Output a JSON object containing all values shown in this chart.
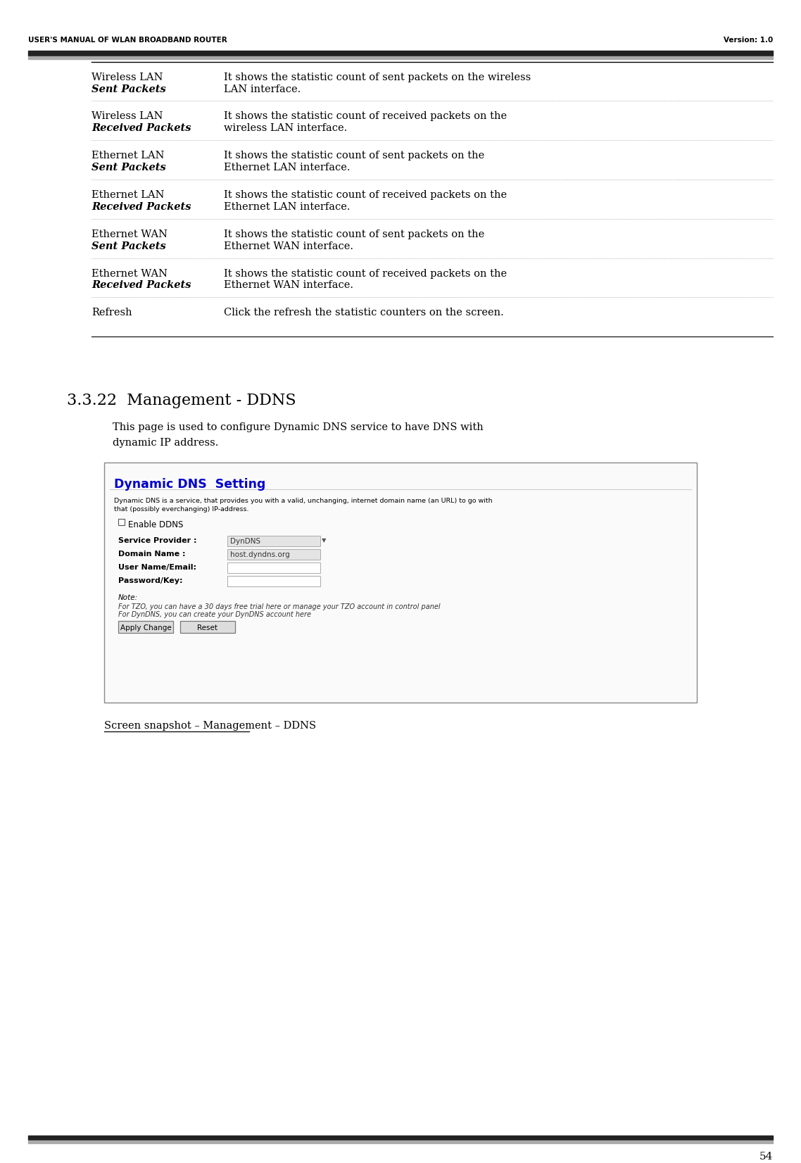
{
  "header_left": "USER'S MANUAL OF WLAN BROADBAND ROUTER",
  "header_right": "Version: 1.0",
  "page_number": "54",
  "table_rows": [
    {
      "col1_line1": "Wireless LAN",
      "col1_line2": "Sent Packets",
      "col1_bold": true,
      "col2_line1": "It shows the statistic count of sent packets on the wireless",
      "col2_line2": "LAN interface."
    },
    {
      "col1_line1": "Wireless LAN",
      "col1_line2": "Received Packets",
      "col1_bold": true,
      "col2_line1": "It shows the statistic count of received packets on the",
      "col2_line2": "wireless LAN interface."
    },
    {
      "col1_line1": "Ethernet LAN",
      "col1_line2": "Sent Packets",
      "col1_bold": true,
      "col2_line1": "It shows the statistic count of sent packets on the",
      "col2_line2": "Ethernet LAN interface."
    },
    {
      "col1_line1": "Ethernet LAN",
      "col1_line2": "Received Packets",
      "col1_bold": true,
      "col2_line1": "It shows the statistic count of received packets on the",
      "col2_line2": "Ethernet LAN interface."
    },
    {
      "col1_line1": "Ethernet WAN",
      "col1_line2": "Sent Packets",
      "col1_bold": true,
      "col2_line1": "It shows the statistic count of sent packets on the",
      "col2_line2": "Ethernet WAN interface."
    },
    {
      "col1_line1": "Ethernet WAN",
      "col1_line2": "Received Packets",
      "col1_bold": true,
      "col2_line1": "It shows the statistic count of received packets on the",
      "col2_line2": "Ethernet WAN interface."
    },
    {
      "col1_line1": "Refresh",
      "col1_line2": "",
      "col1_bold": false,
      "col2_line1": "Click the refresh the statistic counters on the screen.",
      "col2_line2": ""
    }
  ],
  "section_title": "3.3.22  Management - DDNS",
  "section_desc_line1": "This page is used to configure Dynamic DNS service to have DNS with",
  "section_desc_line2": "dynamic IP address.",
  "ddns_box": {
    "title": "Dynamic DNS  Setting",
    "title_color": "#0000CC",
    "desc_line1": "Dynamic DNS is a service, that provides you with a valid, unchanging, internet domain name (an URL) to go with",
    "desc_line2": "that (possibly everchanging) IP-address.",
    "checkbox_label": "Enable DDNS",
    "fields": [
      {
        "label": "Service Provider :",
        "value": "DynDNS",
        "filled": true,
        "has_dropdown": true
      },
      {
        "label": "Domain Name :",
        "value": "host.dyndns.org",
        "filled": true,
        "has_dropdown": false
      },
      {
        "label": "User Name/Email:",
        "value": "",
        "filled": false,
        "has_dropdown": false
      },
      {
        "label": "Password/Key:",
        "value": "",
        "filled": false,
        "has_dropdown": false
      }
    ],
    "note_line1": "Note:",
    "note_line2": "For TZO, you can have a 30 days free trial here or manage your TZO account in control panel",
    "note_line3": "For DynDNS, you can create your DynDNS account here",
    "buttons": [
      "Apply Change",
      "Reset"
    ]
  },
  "screenshot_label": "Screen snapshot – Management – DDNS",
  "bg_color": "#ffffff",
  "text_color": "#000000",
  "header_bar_dark": "#222222",
  "header_bar_light": "#aaaaaa",
  "footer_bar_dark": "#222222",
  "footer_bar_light": "#aaaaaa"
}
